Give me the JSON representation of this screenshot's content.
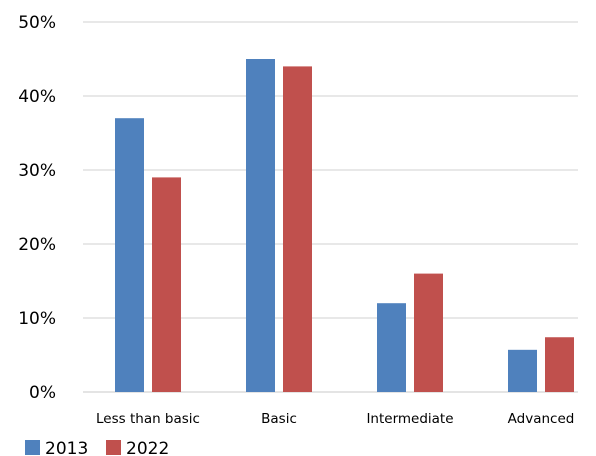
{
  "chart_data": {
    "type": "bar",
    "title": "",
    "xlabel": "",
    "ylabel": "",
    "categories": [
      "Less than basic",
      "Basic",
      "Intermediate",
      "Advanced"
    ],
    "series": [
      {
        "name": "2013",
        "color": "#4f81bd",
        "values": [
          37,
          45,
          12,
          5.7
        ]
      },
      {
        "name": "2022",
        "color": "#c0504d",
        "values": [
          29,
          44,
          16,
          7.4
        ]
      }
    ],
    "ylim": [
      0,
      50
    ],
    "yticks": [
      "0%",
      "10%",
      "20%",
      "30%",
      "40%",
      "50%"
    ],
    "grid": true,
    "gridColor": "#d9d9d9",
    "legend": "bottom-left"
  }
}
